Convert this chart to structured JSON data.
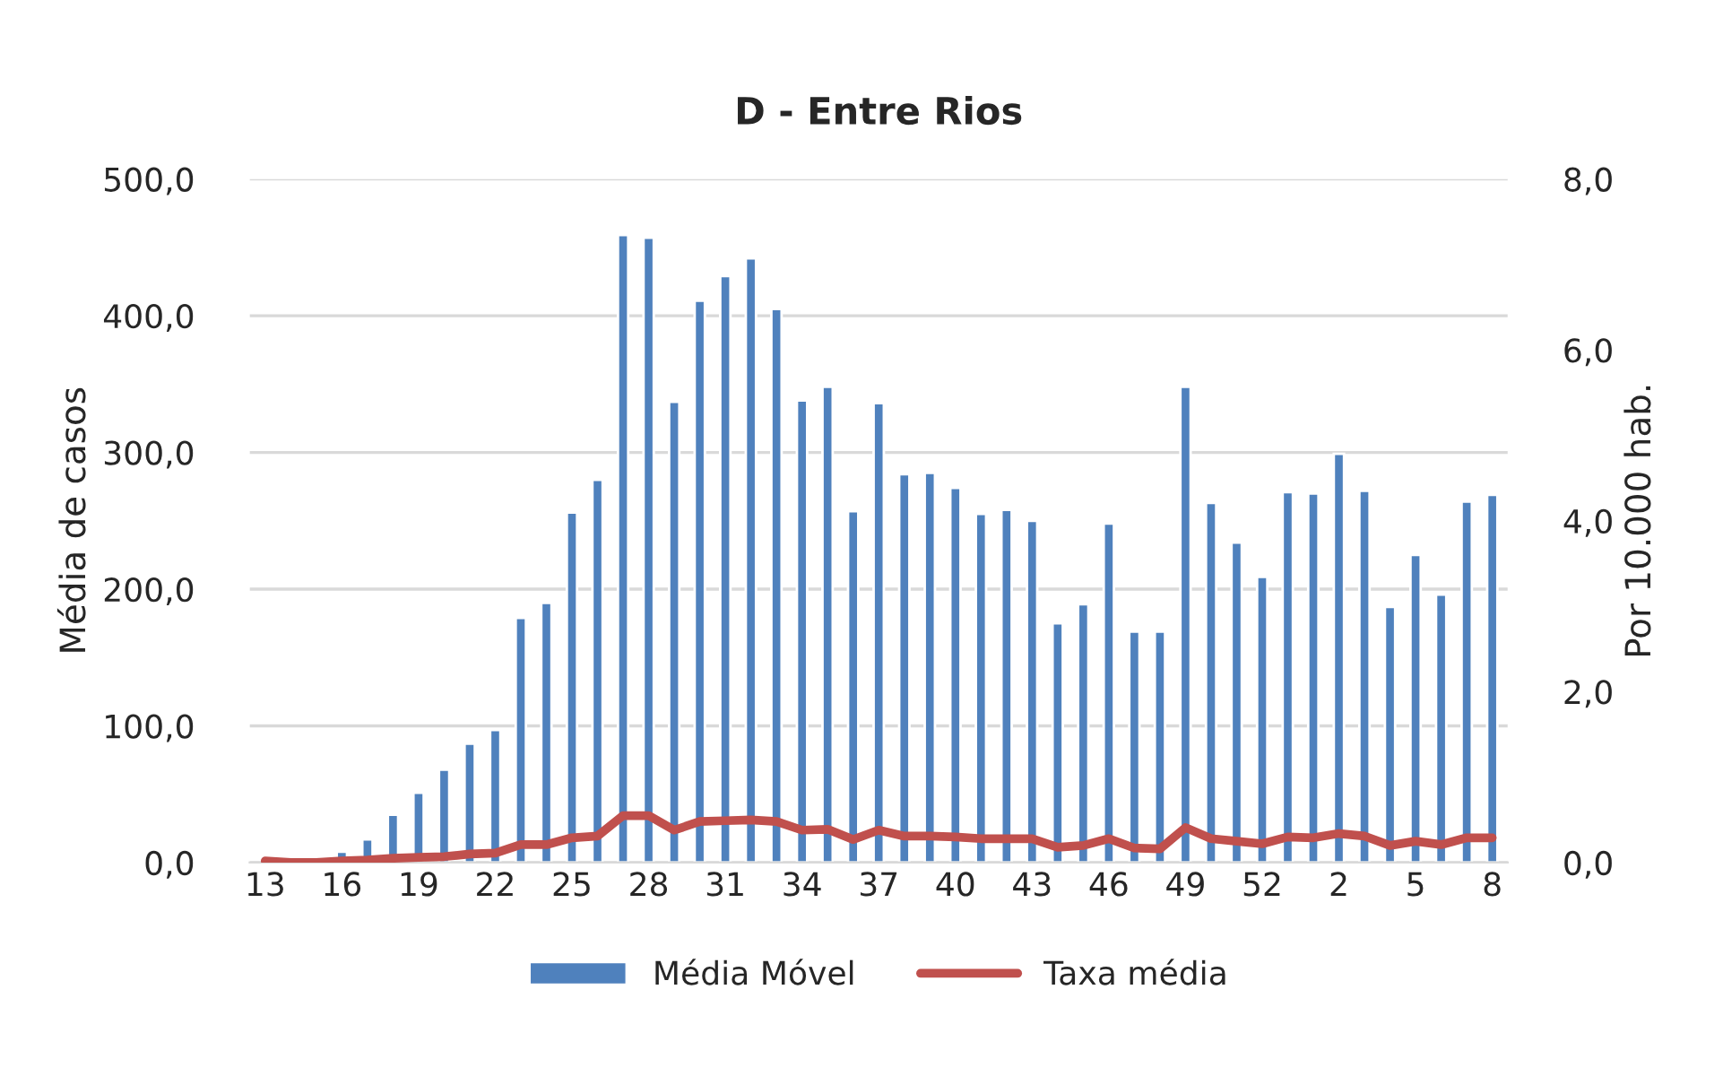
{
  "chart_data": {
    "type": "bar",
    "title": "D - Entre Rios",
    "ylabel": "Média de casos",
    "y2label": "Por 10.000 hab.",
    "categories": [
      "13",
      null,
      null,
      "16",
      null,
      null,
      "19",
      null,
      null,
      "22",
      null,
      null,
      "25",
      null,
      null,
      "28",
      null,
      null,
      "31",
      null,
      null,
      "34",
      null,
      null,
      "37",
      null,
      null,
      "40",
      null,
      null,
      "43",
      null,
      null,
      "46",
      null,
      null,
      "49",
      null,
      null,
      "52",
      null,
      null,
      "2",
      null,
      null,
      "5",
      null,
      null,
      "8"
    ],
    "series": [
      {
        "name": "Média Móvel",
        "color": "#4f81bd",
        "values": [
          null,
          null,
          null,
          8,
          17,
          35,
          51,
          68,
          87,
          97,
          179,
          190,
          256,
          280,
          459,
          457,
          337,
          411,
          429,
          442,
          405,
          338,
          348,
          257,
          336,
          284,
          285,
          274,
          255,
          258,
          250,
          175,
          189,
          248,
          169,
          169,
          348,
          263,
          234,
          209,
          271,
          270,
          299,
          272,
          187,
          225,
          196,
          264,
          269
        ]
      },
      {
        "name": "Taxa média",
        "type": "line",
        "axis": "y2",
        "color": "#c0504d",
        "values": [
          0.02,
          0.0,
          0.0,
          0.02,
          0.03,
          0.05,
          0.06,
          0.07,
          0.1,
          0.11,
          0.21,
          0.21,
          0.29,
          0.31,
          0.55,
          0.55,
          0.38,
          0.48,
          0.49,
          0.5,
          0.48,
          0.38,
          0.39,
          0.27,
          0.38,
          0.31,
          0.31,
          0.3,
          0.28,
          0.28,
          0.28,
          0.18,
          0.2,
          0.28,
          0.17,
          0.16,
          0.41,
          0.28,
          0.25,
          0.22,
          0.3,
          0.29,
          0.34,
          0.31,
          0.2,
          0.25,
          0.21,
          0.29,
          0.29
        ]
      }
    ],
    "ylim": [
      0,
      500
    ],
    "yticks": [
      {
        "value": 0,
        "label": "0,0"
      },
      {
        "value": 100,
        "label": "100,0"
      },
      {
        "value": 200,
        "label": "200,0"
      },
      {
        "value": 300,
        "label": "300,0"
      },
      {
        "value": 400,
        "label": "400,0"
      },
      {
        "value": 500,
        "label": "500,0"
      }
    ],
    "y2lim": [
      0,
      8
    ],
    "y2ticks": [
      {
        "value": 0,
        "label": "0,0"
      },
      {
        "value": 2,
        "label": "2,0"
      },
      {
        "value": 4,
        "label": "4,0"
      },
      {
        "value": 6,
        "label": "6,0"
      },
      {
        "value": 8,
        "label": "8,0"
      }
    ],
    "grid": "y",
    "legend": "bottom"
  }
}
